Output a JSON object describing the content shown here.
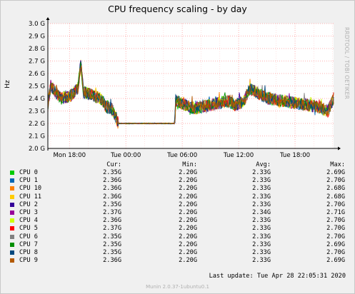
{
  "chart_data": {
    "type": "line",
    "title": "CPU frequency scaling - by day",
    "ylabel": "Hz",
    "ylim": [
      2.0,
      3.0
    ],
    "yticks": [
      "3.0 G",
      "2.9 G",
      "2.8 G",
      "2.7 G",
      "2.6 G",
      "2.5 G",
      "2.4 G",
      "2.3 G",
      "2.2 G",
      "2.1 G",
      "2.0 G"
    ],
    "ytick_values": [
      3.0,
      2.9,
      2.8,
      2.7,
      2.6,
      2.5,
      2.4,
      2.3,
      2.2,
      2.1,
      2.0
    ],
    "x_range_hours": [
      -30.4,
      0
    ],
    "xticks": [
      "Mon 18:00",
      "Tue 00:00",
      "Tue 06:00",
      "Tue 12:00",
      "Tue 18:00"
    ],
    "xtick_hours_before_end": [
      -28.1,
      -22.1,
      -16.1,
      -10.1,
      -4.1
    ],
    "grid": true,
    "series_profile_ghz": [
      [
        -30.4,
        2.35
      ],
      [
        -30.1,
        2.5
      ],
      [
        -29.6,
        2.45
      ],
      [
        -29.0,
        2.4
      ],
      [
        -28.0,
        2.42
      ],
      [
        -27.2,
        2.48
      ],
      [
        -26.9,
        2.68
      ],
      [
        -26.6,
        2.45
      ],
      [
        -25.5,
        2.42
      ],
      [
        -24.8,
        2.4
      ],
      [
        -24.1,
        2.33
      ],
      [
        -23.6,
        2.32
      ],
      [
        -22.9,
        2.2
      ],
      [
        -16.9,
        2.2
      ],
      [
        -16.8,
        2.38
      ],
      [
        -14.8,
        2.32
      ],
      [
        -13.0,
        2.35
      ],
      [
        -11.3,
        2.38
      ],
      [
        -10.5,
        2.35
      ],
      [
        -9.6,
        2.37
      ],
      [
        -8.9,
        2.48
      ],
      [
        -7.0,
        2.4
      ],
      [
        -3.0,
        2.35
      ],
      [
        -1.5,
        2.33
      ],
      [
        -0.6,
        2.3
      ],
      [
        0,
        2.4
      ]
    ],
    "series": [
      {
        "name": "CPU 0",
        "color": "#00cc00"
      },
      {
        "name": "CPU 1",
        "color": "#0066b3"
      },
      {
        "name": "CPU 10",
        "color": "#ff8000"
      },
      {
        "name": "CPU 11",
        "color": "#ffcc00"
      },
      {
        "name": "CPU 2",
        "color": "#330099"
      },
      {
        "name": "CPU 3",
        "color": "#990099"
      },
      {
        "name": "CPU 4",
        "color": "#ccff00"
      },
      {
        "name": "CPU 5",
        "color": "#ff0000"
      },
      {
        "name": "CPU 6",
        "color": "#808080"
      },
      {
        "name": "CPU 7",
        "color": "#008f00"
      },
      {
        "name": "CPU 8",
        "color": "#00487d"
      },
      {
        "name": "CPU 9",
        "color": "#b35a00"
      }
    ]
  },
  "legend": {
    "headers": {
      "cur": "Cur:",
      "min": "Min:",
      "avg": "Avg:",
      "max": "Max:"
    },
    "rows": [
      {
        "name": "CPU 0",
        "color": "#00cc00",
        "cur": "2.35G",
        "min": "2.20G",
        "avg": "2.33G",
        "max": "2.69G"
      },
      {
        "name": "CPU 1",
        "color": "#0066b3",
        "cur": "2.36G",
        "min": "2.20G",
        "avg": "2.33G",
        "max": "2.70G"
      },
      {
        "name": "CPU 10",
        "color": "#ff8000",
        "cur": "2.36G",
        "min": "2.20G",
        "avg": "2.33G",
        "max": "2.68G"
      },
      {
        "name": "CPU 11",
        "color": "#ffcc00",
        "cur": "2.36G",
        "min": "2.20G",
        "avg": "2.33G",
        "max": "2.68G"
      },
      {
        "name": "CPU 2",
        "color": "#330099",
        "cur": "2.35G",
        "min": "2.20G",
        "avg": "2.33G",
        "max": "2.70G"
      },
      {
        "name": "CPU 3",
        "color": "#990099",
        "cur": "2.37G",
        "min": "2.20G",
        "avg": "2.34G",
        "max": "2.71G"
      },
      {
        "name": "CPU 4",
        "color": "#ccff00",
        "cur": "2.36G",
        "min": "2.20G",
        "avg": "2.33G",
        "max": "2.70G"
      },
      {
        "name": "CPU 5",
        "color": "#ff0000",
        "cur": "2.37G",
        "min": "2.20G",
        "avg": "2.33G",
        "max": "2.70G"
      },
      {
        "name": "CPU 6",
        "color": "#808080",
        "cur": "2.35G",
        "min": "2.20G",
        "avg": "2.33G",
        "max": "2.70G"
      },
      {
        "name": "CPU 7",
        "color": "#008f00",
        "cur": "2.35G",
        "min": "2.20G",
        "avg": "2.33G",
        "max": "2.69G"
      },
      {
        "name": "CPU 8",
        "color": "#00487d",
        "cur": "2.35G",
        "min": "2.20G",
        "avg": "2.33G",
        "max": "2.70G"
      },
      {
        "name": "CPU 9",
        "color": "#b35a00",
        "cur": "2.36G",
        "min": "2.20G",
        "avg": "2.33G",
        "max": "2.69G"
      }
    ]
  },
  "last_update": "Last update: Tue Apr 28 22:05:31 2020",
  "side_credit": "RRDTOOL / TOBI OETIKER",
  "footer_version": "Munin 2.0.37-1ubuntu0.1",
  "colors": {
    "grid": "#ff9999",
    "grid_minor": "#ffcccc",
    "axis": "#000000",
    "plot_bg": "#ffffff",
    "page_bg": "#f0f0f0"
  }
}
